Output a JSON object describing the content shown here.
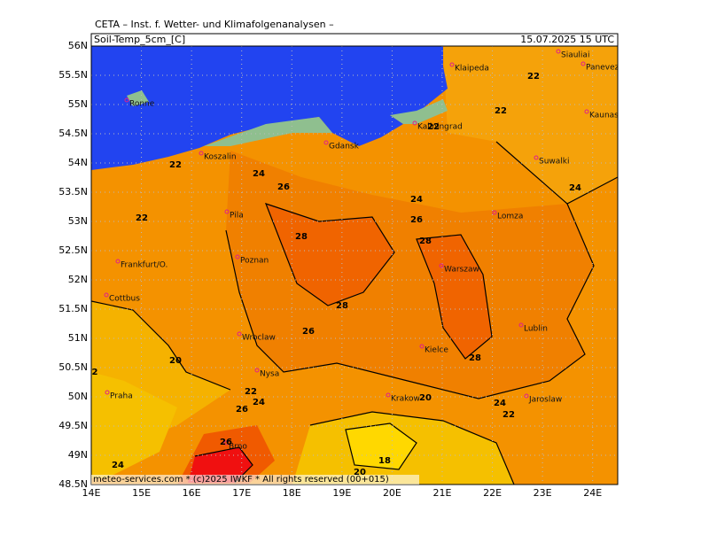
{
  "header": {
    "title": "CETA – Inst. f. Wetter- und Klimafolgenanalysen –",
    "field": "Soil-Temp_5cm_[C]",
    "valid_time": "15.07.2025 15 UTC"
  },
  "footer": "meteo-services.com * (c)2025 IWKF * All rights reserved (00+015)",
  "lat_labels": [
    "56N",
    "55.5N",
    "55N",
    "54.5N",
    "54N",
    "53.5N",
    "53N",
    "52.5N",
    "52N",
    "51.5N",
    "51N",
    "50.5N",
    "50N",
    "49.5N",
    "49N",
    "48.5N"
  ],
  "lon_labels": [
    "14E",
    "15E",
    "16E",
    "17E",
    "18E",
    "19E",
    "20E",
    "21E",
    "22E",
    "23E",
    "24E"
  ],
  "cities": [
    "Siauliai",
    "Panevezys",
    "Klaipeda",
    "Ronne",
    "Kaunas",
    "Kaliningrad",
    "Gdansk",
    "Koszalin",
    "Suwalki",
    "Pila",
    "Lomza",
    "Poznan",
    "Frankfurt/O.",
    "Warszaw",
    "Cottbus",
    "Lublin",
    "Wroclaw",
    "Kielce",
    "Nysa",
    "Praha",
    "Krakow",
    "Jaroslaw",
    "Brno"
  ],
  "contour_labels": [
    "22",
    "22",
    "22",
    "22",
    "24",
    "24",
    "26",
    "24",
    "22",
    "26",
    "28",
    "28",
    "28",
    "26",
    "20",
    "2",
    "28",
    "22",
    "24",
    "20",
    "24",
    "26",
    "22",
    "26",
    "18",
    "20",
    "24"
  ]
}
